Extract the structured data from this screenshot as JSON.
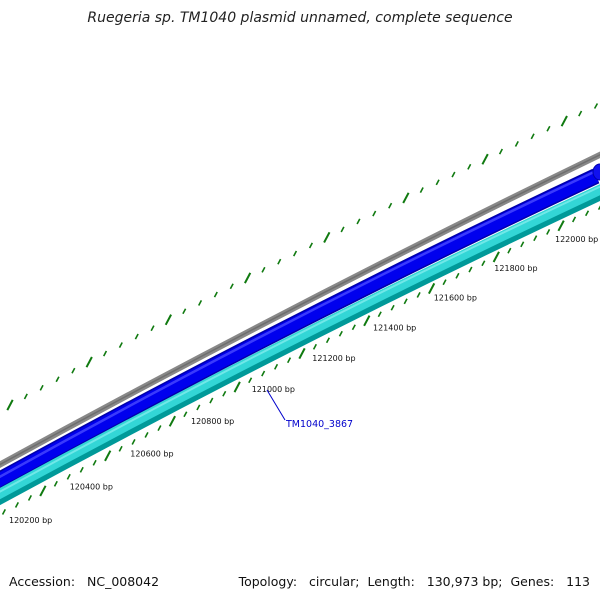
{
  "title": "Ruegeria sp. TM1040 plasmid unnamed, complete sequence",
  "footer": {
    "accession_label": "Accession:",
    "accession": "NC_008042",
    "topology_label": "Topology:",
    "topology": "circular",
    "length_label": "Length:",
    "length": "130,973 bp",
    "genes_label": "Genes:",
    "genes": "113"
  },
  "colors": {
    "backbone": "#808080",
    "forward_strand": "#0000ee",
    "reverse_strand": "#33d6d6",
    "reverse_strand_edge": "#009999",
    "tick": "#107a10",
    "gene_label": "#0000cc"
  },
  "scale_labels": [
    "120200 bp",
    "120400 bp",
    "120600 bp",
    "120800 bp",
    "121000 bp",
    "121200 bp",
    "121400 bp",
    "121600 bp",
    "121800 bp",
    "122000 bp"
  ],
  "gene_annotations": [
    {
      "name": "TM1040_3867",
      "strand": "reverse"
    }
  ]
}
